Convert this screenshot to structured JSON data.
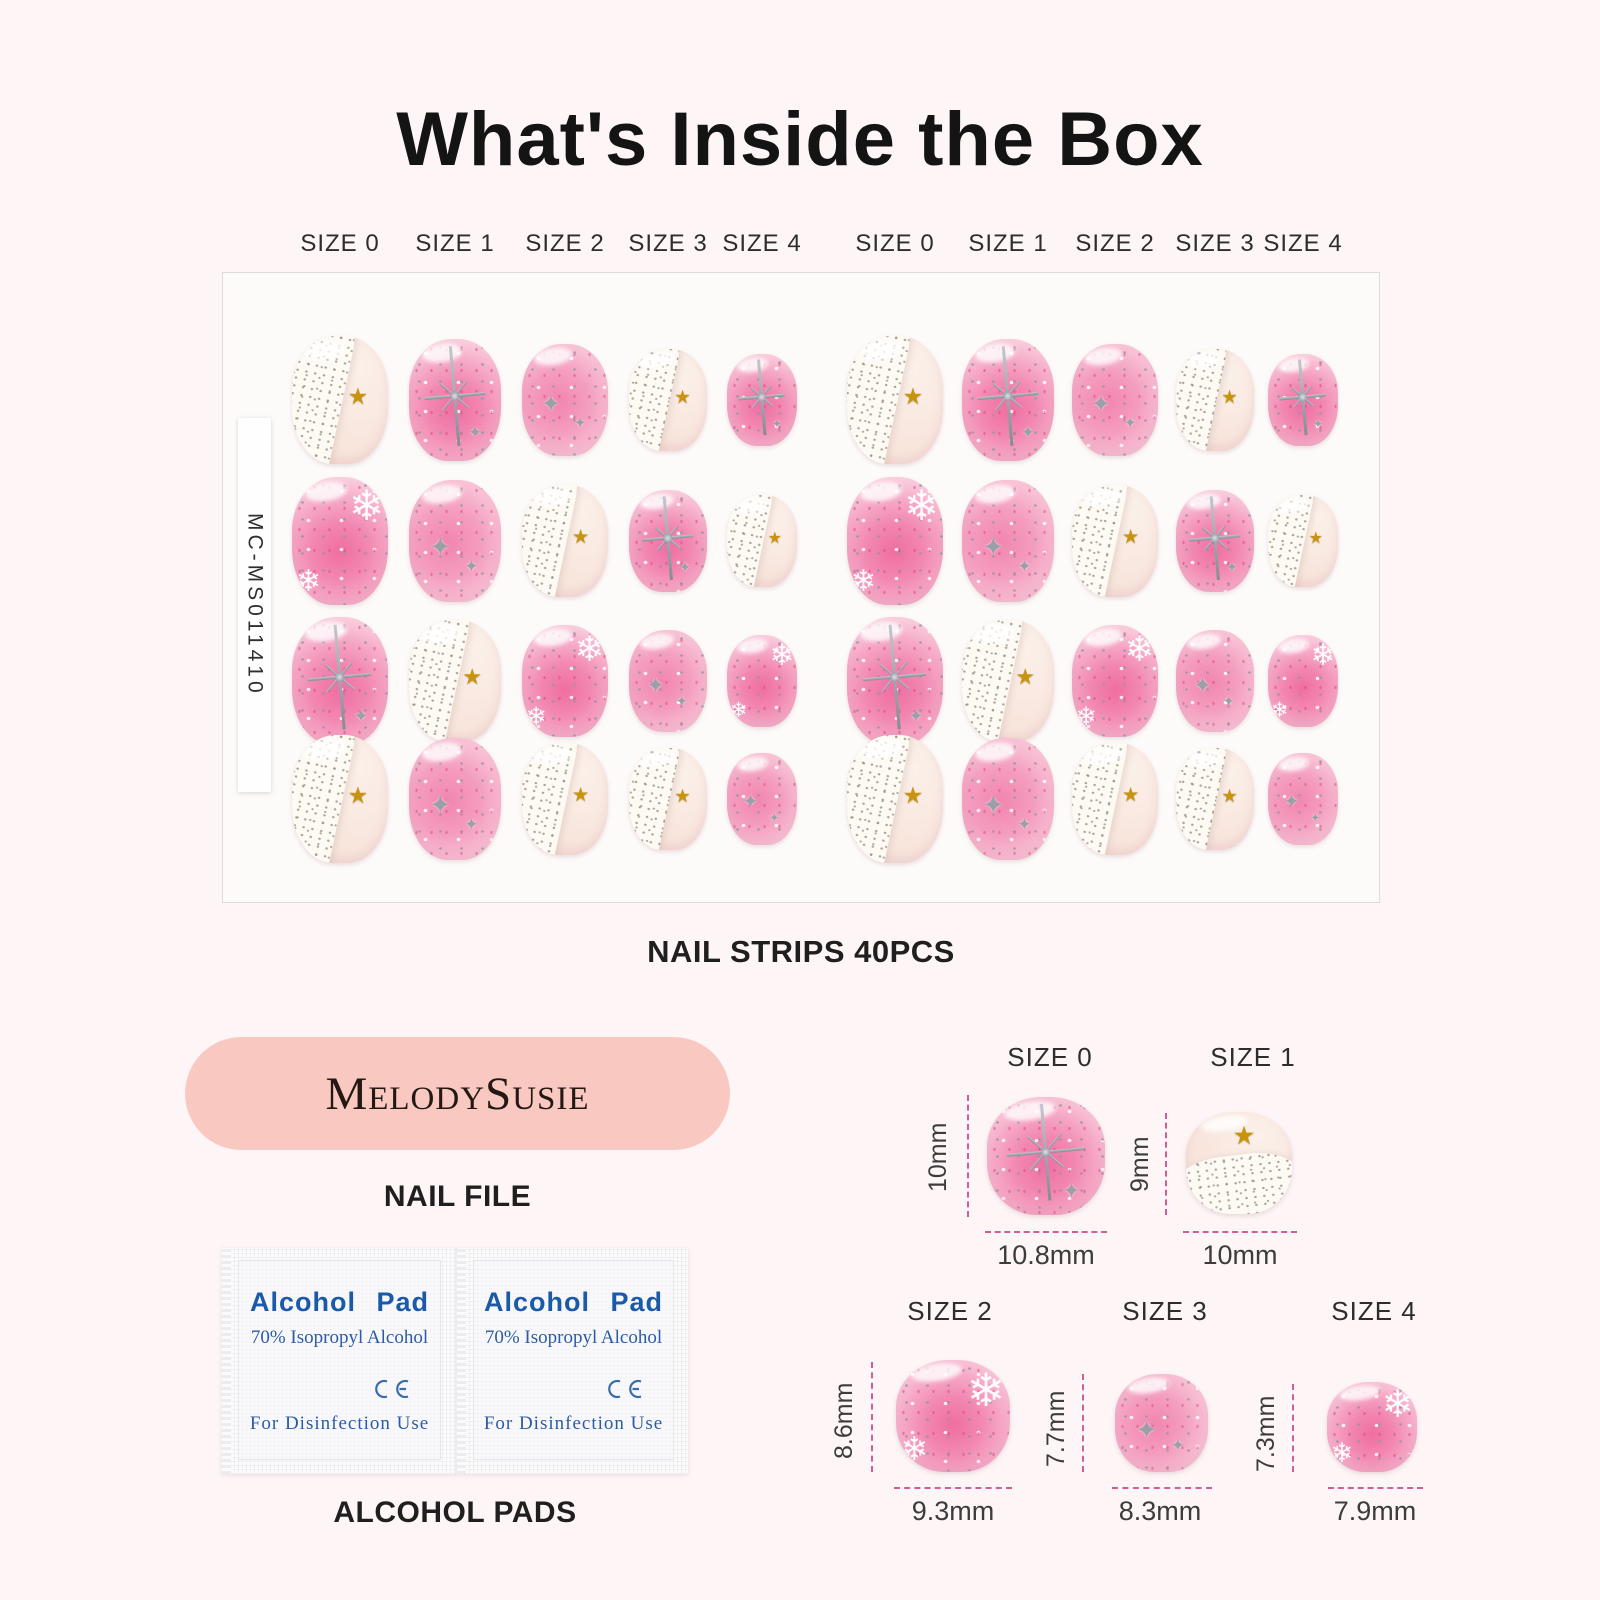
{
  "title": "What's Inside the Box",
  "size_labels": [
    "SIZE 0",
    "SIZE 1",
    "SIZE 2",
    "SIZE 3",
    "SIZE 4",
    "SIZE 0",
    "SIZE 1",
    "SIZE 2",
    "SIZE 3",
    "SIZE 4"
  ],
  "sheet": {
    "sku": "MC-MS011410",
    "caption": "NAIL STRIPS 40PCS",
    "column_sizes": [
      0,
      1,
      2,
      3,
      4,
      0,
      1,
      2,
      3,
      4
    ],
    "rows": [
      [
        "french-star",
        "starburst",
        "sparkle",
        "french-star",
        "starburst",
        "french-star",
        "starburst",
        "sparkle",
        "french-star",
        "starburst"
      ],
      [
        "snowflake",
        "sparkle",
        "french-star",
        "starburst",
        "french-star",
        "snowflake",
        "sparkle",
        "french-star",
        "starburst",
        "french-star"
      ],
      [
        "starburst",
        "french-star",
        "snowflake",
        "sparkle",
        "snowflake",
        "starburst",
        "french-star",
        "snowflake",
        "sparkle",
        "snowflake"
      ],
      [
        "french-star",
        "sparkle",
        "french-star",
        "french-star",
        "sparkle",
        "french-star",
        "sparkle",
        "french-star",
        "french-star",
        "sparkle"
      ]
    ]
  },
  "nail_file": {
    "brand": "MelodySusie",
    "caption": "NAIL FILE"
  },
  "alcohol_pads": {
    "caption": "ALCOHOL PADS",
    "count": 2,
    "pad": {
      "title": "Alcohol Pad",
      "subtitle": "70% Isopropyl Alcohol",
      "ce_mark": "CE",
      "footer": "For Disinfection Use"
    }
  },
  "size_chart": [
    {
      "label": "SIZE 0",
      "design": "starburst",
      "height_mm": "10mm",
      "width_mm": "10.8mm"
    },
    {
      "label": "SIZE 1",
      "design": "french-star",
      "height_mm": "9mm",
      "width_mm": "10mm"
    },
    {
      "label": "SIZE 2",
      "design": "snowflake",
      "height_mm": "8.6mm",
      "width_mm": "9.3mm"
    },
    {
      "label": "SIZE 3",
      "design": "sparkle",
      "height_mm": "7.7mm",
      "width_mm": "8.3mm"
    },
    {
      "label": "SIZE 4",
      "design": "snowflake",
      "height_mm": "7.3mm",
      "width_mm": "7.9mm"
    }
  ],
  "icons": {
    "gold-star": "★",
    "sparkle": "✦",
    "snowflake": "❄"
  },
  "colors": {
    "background": "#fdf5f6",
    "sheet": "#fdfbf9",
    "dash_accent": "#cf5f94",
    "gold_star": "#c8930e",
    "pad_text_blue": "#1b5aa8",
    "nail_file_pink": "#f9c9c1",
    "title_ink": "#141414"
  }
}
